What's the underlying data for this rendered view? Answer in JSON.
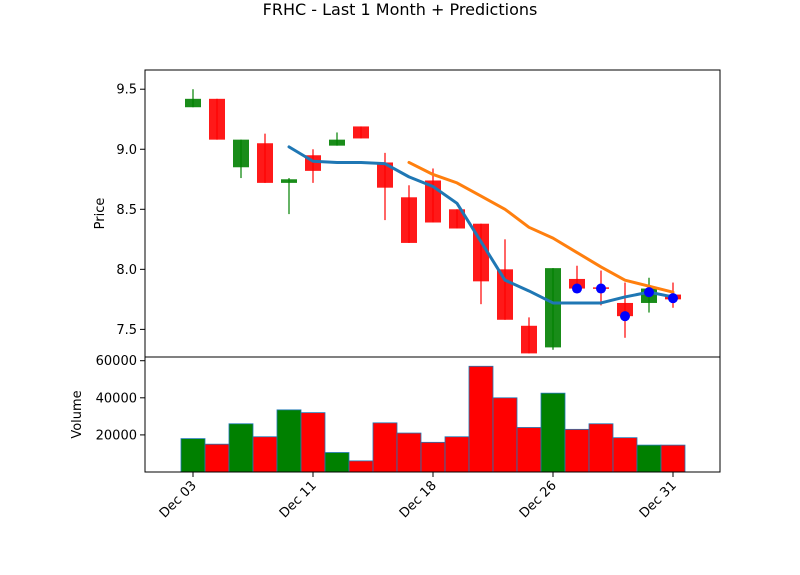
{
  "chart_data": {
    "type": "candlestick",
    "title": "FRHC - Last 1 Month + Predictions",
    "colors": {
      "up": "#008000",
      "down": "#ff0000",
      "ma_short": "#1f77b4",
      "ma_long": "#ff7f0e",
      "prediction": "#0000ff"
    },
    "x_tick_labels": [
      "Dec 03",
      "Dec 11",
      "Dec 18",
      "Dec 26",
      "Dec 31"
    ],
    "x_tick_index": [
      0,
      5,
      10,
      15,
      20
    ],
    "price_panel": {
      "ylabel": "Price",
      "ylim": [
        7.27,
        9.66
      ],
      "yticks": [
        7.5,
        8.0,
        8.5,
        9.0,
        9.5
      ],
      "ytick_labels": [
        "7.5",
        "8.0",
        "8.5",
        "9.0",
        "9.5"
      ],
      "candles": [
        {
          "open": 9.35,
          "high": 9.5,
          "low": 9.35,
          "close": 9.42
        },
        {
          "open": 9.42,
          "high": 9.42,
          "low": 9.08,
          "close": 9.08
        },
        {
          "open": 8.85,
          "high": 9.08,
          "low": 8.76,
          "close": 9.08
        },
        {
          "open": 9.05,
          "high": 9.13,
          "low": 8.72,
          "close": 8.72
        },
        {
          "open": 8.72,
          "high": 8.76,
          "low": 8.46,
          "close": 8.75
        },
        {
          "open": 8.95,
          "high": 9.0,
          "low": 8.72,
          "close": 8.82
        },
        {
          "open": 9.03,
          "high": 9.14,
          "low": 9.03,
          "close": 9.08
        },
        {
          "open": 9.19,
          "high": 9.19,
          "low": 9.09,
          "close": 9.09
        },
        {
          "open": 8.89,
          "high": 8.97,
          "low": 8.41,
          "close": 8.68
        },
        {
          "open": 8.6,
          "high": 8.7,
          "low": 8.22,
          "close": 8.22
        },
        {
          "open": 8.74,
          "high": 8.84,
          "low": 8.39,
          "close": 8.39
        },
        {
          "open": 8.5,
          "high": 8.5,
          "low": 8.34,
          "close": 8.34
        },
        {
          "open": 8.38,
          "high": 8.38,
          "low": 7.71,
          "close": 7.9
        },
        {
          "open": 8.0,
          "high": 8.25,
          "low": 7.58,
          "close": 7.58
        },
        {
          "open": 7.53,
          "high": 7.6,
          "low": 7.3,
          "close": 7.3
        },
        {
          "open": 7.35,
          "high": 8.01,
          "low": 7.33,
          "close": 8.01
        },
        {
          "open": 7.92,
          "high": 8.03,
          "low": 7.84,
          "close": 7.84
        },
        {
          "open": 7.85,
          "high": 7.99,
          "low": 7.7,
          "close": 7.84
        },
        {
          "open": 7.72,
          "high": 7.89,
          "low": 7.43,
          "close": 7.61
        },
        {
          "open": 7.72,
          "high": 7.93,
          "low": 7.64,
          "close": 7.84
        },
        {
          "open": 7.79,
          "high": 7.89,
          "low": 7.68,
          "close": 7.75
        }
      ],
      "ma_short": [
        null,
        null,
        null,
        null,
        9.02,
        8.9,
        8.89,
        8.89,
        8.88,
        8.77,
        8.69,
        8.55,
        8.23,
        7.91,
        7.82,
        7.72,
        7.72,
        7.72,
        7.77,
        7.81,
        7.77
      ],
      "ma_long": [
        null,
        null,
        null,
        null,
        null,
        null,
        null,
        null,
        null,
        8.89,
        8.79,
        8.72,
        8.61,
        8.5,
        8.35,
        8.26,
        8.14,
        8.02,
        7.91,
        7.86,
        7.81
      ],
      "predictions": [
        {
          "index": 16,
          "value": 7.84
        },
        {
          "index": 17,
          "value": 7.84
        },
        {
          "index": 18,
          "value": 7.61
        },
        {
          "index": 19,
          "value": 7.81
        },
        {
          "index": 20,
          "value": 7.76
        }
      ]
    },
    "volume_panel": {
      "ylabel": "Volume",
      "ylim": [
        0,
        62000
      ],
      "yticks": [
        20000,
        40000,
        60000
      ],
      "ytick_labels": [
        "20000",
        "40000",
        "60000"
      ],
      "values": [
        18000,
        15000,
        26000,
        19000,
        33500,
        32000,
        10500,
        6000,
        26500,
        21000,
        16000,
        19000,
        57000,
        40000,
        24000,
        42500,
        23000,
        26000,
        18500,
        14500,
        14500
      ]
    }
  }
}
